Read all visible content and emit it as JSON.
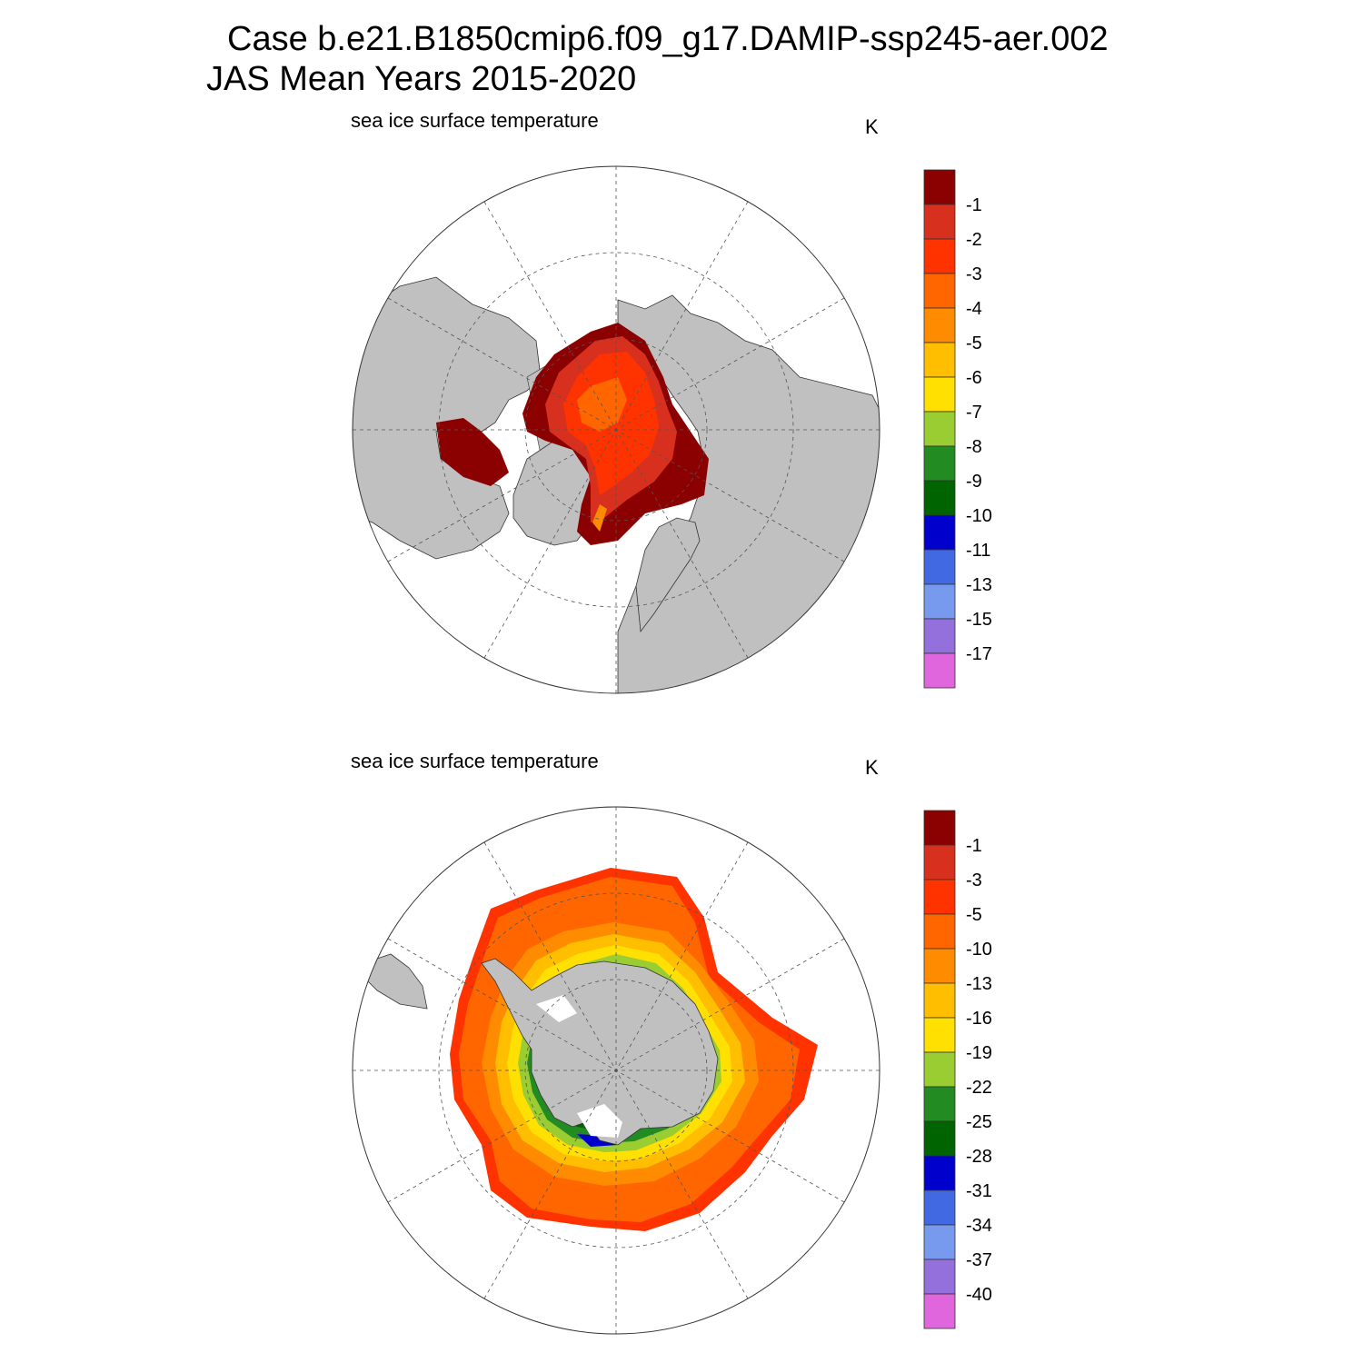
{
  "title": {
    "line1": "Case b.e21.B1850cmip6.f09_g17.DAMIP-ssp245-aer.002",
    "line2": "JAS Mean   Years 2015-2020"
  },
  "panels": [
    {
      "hemisphere": "north",
      "subtitle": "sea ice surface temperature",
      "units": "K",
      "colorbar": {
        "labels": [
          "-1",
          "-2",
          "-3",
          "-4",
          "-5",
          "-6",
          "-7",
          "-8",
          "-9",
          "-10",
          "-11",
          "-13",
          "-15",
          "-17"
        ],
        "colors": [
          "#8b0000",
          "#d7301f",
          "#ff3300",
          "#ff6600",
          "#ff8c00",
          "#ffbf00",
          "#ffe000",
          "#9acd32",
          "#228b22",
          "#006400",
          "#0000cd",
          "#4169e1",
          "#7799ee",
          "#9370db",
          "#e066dd"
        ]
      }
    },
    {
      "hemisphere": "south",
      "subtitle": "sea ice surface temperature",
      "units": "K",
      "colorbar": {
        "labels": [
          "-1",
          "-3",
          "-5",
          "-10",
          "-13",
          "-16",
          "-19",
          "-22",
          "-25",
          "-28",
          "-31",
          "-34",
          "-37",
          "-40"
        ],
        "colors": [
          "#8b0000",
          "#d7301f",
          "#ff3300",
          "#ff6600",
          "#ff8c00",
          "#ffbf00",
          "#ffe000",
          "#9acd32",
          "#228b22",
          "#006400",
          "#0000cd",
          "#4169e1",
          "#7799ee",
          "#9370db",
          "#e066dd"
        ]
      }
    }
  ],
  "colors": {
    "land": "#c0c0c0",
    "ocean": "#ffffff",
    "grid": "#555555"
  }
}
